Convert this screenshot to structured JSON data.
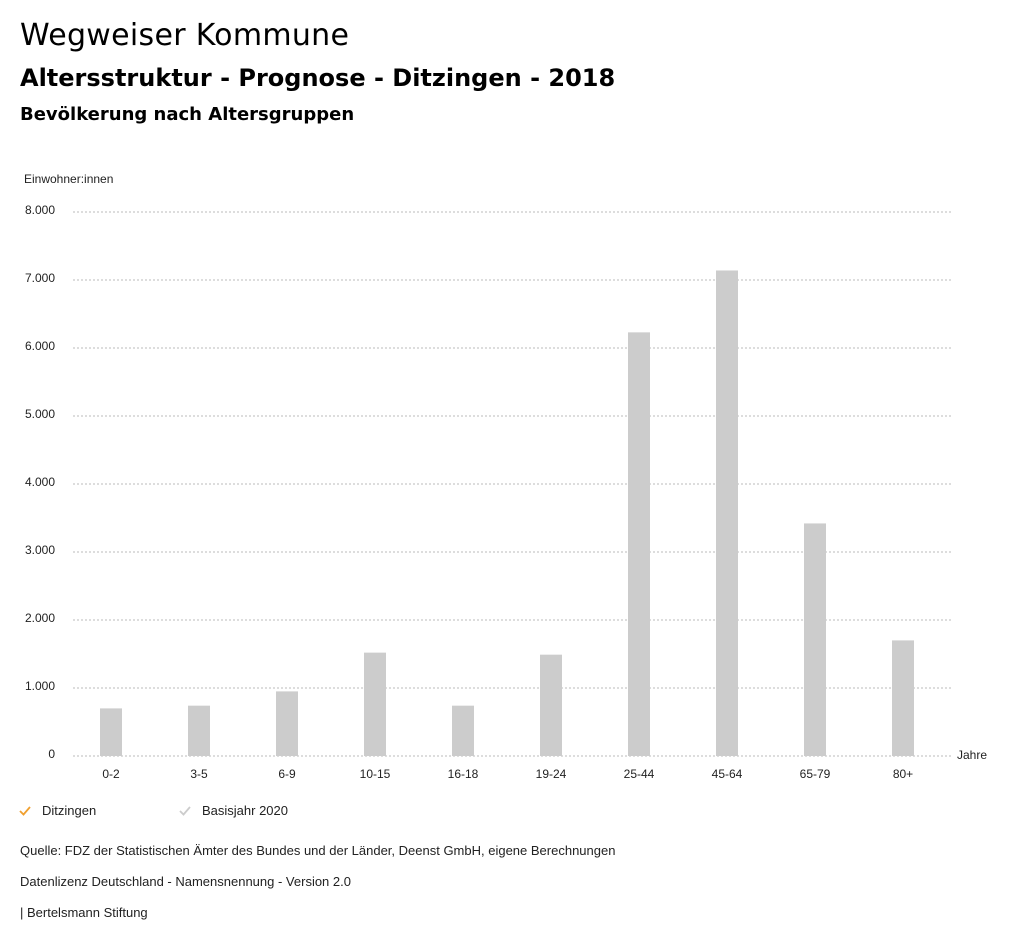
{
  "header": {
    "title": "Wegweiser Kommune",
    "subtitle": "Altersstruktur - Prognose - Ditzingen - 2018",
    "subsubtitle": "Bevölkerung nach Altersgruppen"
  },
  "legend": {
    "items": [
      {
        "label": "Ditzingen",
        "color": "#f0a030"
      },
      {
        "label": "Basisjahr 2020",
        "color": "#cccccc"
      }
    ]
  },
  "footer": {
    "source": "Quelle: FDZ der Statistischen Ämter des Bundes und der Länder, Deenst GmbH, eigene Berechnungen",
    "license": "Datenlizenz Deutschland - Namensnennung - Version 2.0",
    "brand": "| Bertelsmann Stiftung"
  },
  "colors": {
    "bar": "#cccccc",
    "grid": "#bbbbbb"
  },
  "chart_data": {
    "type": "bar",
    "title": "Bevölkerung nach Altersgruppen",
    "ylabel": "Einwohner:innen",
    "xlabel": "Jahre",
    "ylim": [
      0,
      8000
    ],
    "yticks": [
      0,
      1000,
      2000,
      3000,
      4000,
      5000,
      6000,
      7000,
      8000
    ],
    "ytick_labels": [
      "0",
      "1.000",
      "2.000",
      "3.000",
      "4.000",
      "5.000",
      "6.000",
      "7.000",
      "8.000"
    ],
    "grid": true,
    "categories": [
      "0-2",
      "3-5",
      "6-9",
      "10-15",
      "16-18",
      "19-24",
      "25-44",
      "45-64",
      "65-79",
      "80+"
    ],
    "series": [
      {
        "name": "Basisjahr 2020",
        "values": [
          700,
          740,
          950,
          1520,
          740,
          1490,
          6230,
          7140,
          3420,
          1700
        ]
      }
    ]
  }
}
